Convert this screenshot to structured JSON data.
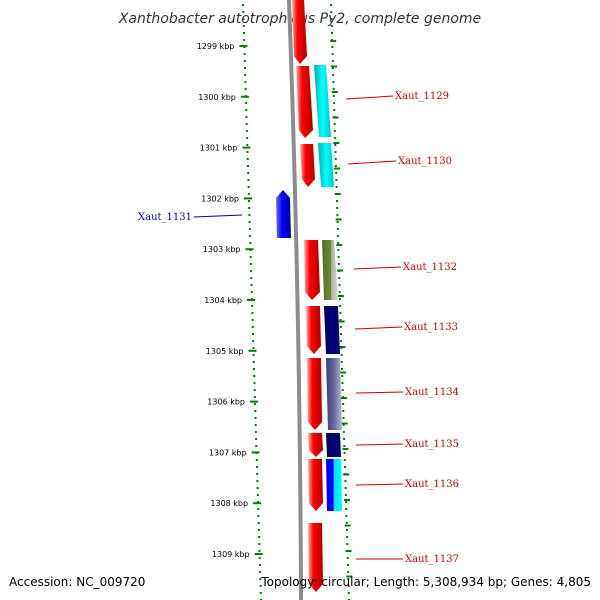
{
  "title": "Xanthobacter autotrophicus Py2, complete genome",
  "accession": "Accession: NC_009720",
  "topology": "Topology: circular; Length: 5,308,934 bp; Genes: 4,805",
  "colors": {
    "forward_label": "#cc0000",
    "reverse_label": "#0000aa",
    "forward_gene": "#ff0000",
    "reverse_gene": "#0000ff",
    "backbone": "#8c8c8c",
    "ruler": "#008000"
  },
  "ruler": {
    "ticks": [
      "1299 kbp",
      "1300 kbp",
      "1301 kbp",
      "1302 kbp",
      "1303 kbp",
      "1304 kbp",
      "1305 kbp",
      "1306 kbp",
      "1307 kbp",
      "1308 kbp",
      "1309 kbp"
    ]
  },
  "genes": [
    {
      "label": "",
      "strand": "forward"
    },
    {
      "label": "Xaut_1129",
      "strand": "forward"
    },
    {
      "label": "Xaut_1130",
      "strand": "forward"
    },
    {
      "label": "Xaut_1131",
      "strand": "reverse"
    },
    {
      "label": "Xaut_1132",
      "strand": "forward"
    },
    {
      "label": "Xaut_1133",
      "strand": "forward"
    },
    {
      "label": "Xaut_1134",
      "strand": "forward"
    },
    {
      "label": "Xaut_1135",
      "strand": "forward"
    },
    {
      "label": "Xaut_1136",
      "strand": "forward"
    },
    {
      "label": "Xaut_1137",
      "strand": "forward"
    }
  ],
  "feature_colors": [
    "#00e5e5",
    "#00e5e5",
    "#6b8e23",
    "#000080",
    "#4b4b8c",
    "#000080",
    "#00e5e5"
  ]
}
